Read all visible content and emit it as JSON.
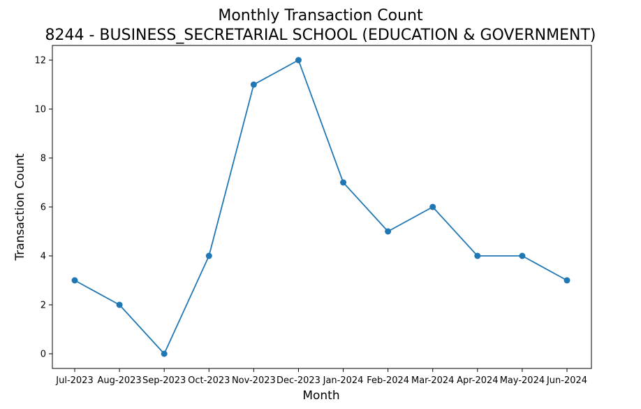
{
  "chart_data": {
    "type": "line",
    "title": "Monthly Transaction Count",
    "subtitle": "8244 - BUSINESS_SECRETARIAL SCHOOL (EDUCATION & GOVERNMENT)",
    "xlabel": "Month",
    "ylabel": "Transaction Count",
    "categories": [
      "Jul-2023",
      "Aug-2023",
      "Sep-2023",
      "Oct-2023",
      "Nov-2023",
      "Dec-2023",
      "Jan-2024",
      "Feb-2024",
      "Mar-2024",
      "Apr-2024",
      "May-2024",
      "Jun-2024"
    ],
    "series": [
      {
        "values": [
          3,
          2,
          0,
          4,
          11,
          12,
          7,
          5,
          6,
          4,
          4,
          3
        ],
        "color": "#1f77b4",
        "marker": "circle"
      }
    ],
    "ylim": [
      -0.6,
      12.6
    ],
    "yticks": [
      0,
      2,
      4,
      6,
      8,
      10,
      12
    ],
    "grid": false,
    "legend": "none"
  }
}
